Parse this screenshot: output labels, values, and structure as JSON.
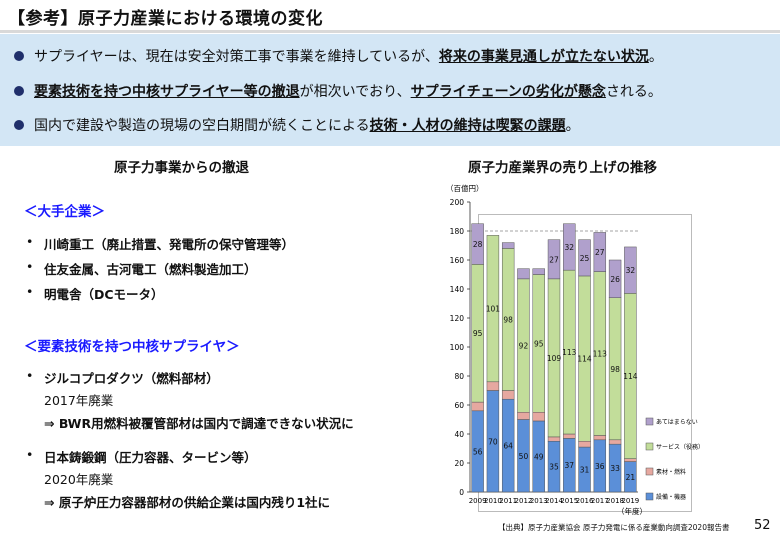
{
  "title": "【参考】原子力産業における環境の変化",
  "banner": {
    "item1": {
      "pre": "サプライヤーは、現在は安全対策工事で事業を維持しているが、",
      "hl": "将来の事業見通しが立たない状況",
      "post": "。"
    },
    "item2": {
      "hl1": "要素技術を持つ中核サプライヤー等の撤退",
      "mid": "が相次いでおり、",
      "hl2": "サプライチェーンの劣化が懸念",
      "post": "される。"
    },
    "item3": {
      "pre": "国内で建設や製造の現場の空白期間が続くことによる",
      "hl": "技術・人材の維持は喫緊の課題",
      "post": "。"
    }
  },
  "left": {
    "heading": "原子力事業からの撤退",
    "cat1": "＜大手企業＞",
    "cat1_items": [
      "川崎重工（廃止措置、発電所の保守管理等）",
      "住友金属、古河電工（燃料製造加工）",
      "明電舎（DCモータ）"
    ],
    "cat2": "＜要素技術を持つ中核サプライヤ＞",
    "company1": {
      "name": "ジルコプロダクツ（燃料部材）",
      "year": "2017年廃業",
      "note": "⇒  BWR用燃料被覆管部材は国内で調達できない状況に"
    },
    "company2": {
      "name": "日本鋳鍛鋼（圧力容器、タービン等）",
      "year": "2020年廃業",
      "note": "⇒  原子炉圧力容器部材の供給企業は国内残り1社に"
    }
  },
  "right": {
    "heading": "原子力産業界の売り上げの推移"
  },
  "chart_data": {
    "type": "bar",
    "stacked": true,
    "unit_label": "（百億円）",
    "xlabel": "（年度）",
    "ylim": [
      0,
      200
    ],
    "yticks": [
      0,
      20,
      40,
      60,
      80,
      100,
      120,
      140,
      160,
      180,
      200
    ],
    "reference_line": 180,
    "categories": [
      "2009",
      "2010",
      "2011",
      "2012",
      "2013",
      "2014",
      "2015",
      "2016",
      "2017",
      "2018",
      "2019"
    ],
    "series": [
      {
        "name": "設備・機器",
        "color": "#5b8fd8",
        "values": [
          56,
          70,
          64,
          50,
          49,
          35,
          37,
          31,
          36,
          33,
          21
        ]
      },
      {
        "name": "素材・燃料",
        "color": "#e6a8a0",
        "values": [
          6,
          6,
          6,
          5,
          6,
          3,
          3,
          4,
          3,
          3,
          2
        ]
      },
      {
        "name": "サービス（役務）",
        "color": "#c2dd9a",
        "values": [
          95,
          101,
          98,
          92,
          95,
          109,
          113,
          114,
          113,
          98,
          114
        ]
      },
      {
        "name": "あてはまらない",
        "color": "#b0a0cc",
        "values": [
          28,
          0,
          4,
          7,
          4,
          27,
          32,
          25,
          27,
          26,
          32
        ]
      }
    ],
    "labels_shown": [
      [
        56,
        70,
        64,
        50,
        49,
        35,
        37,
        31,
        36,
        33,
        21
      ],
      [
        null,
        null,
        null,
        null,
        null,
        null,
        null,
        null,
        null,
        null,
        null
      ],
      [
        95,
        101,
        98,
        92,
        95,
        109,
        113,
        114,
        113,
        98,
        114
      ],
      [
        28,
        null,
        null,
        null,
        null,
        27,
        32,
        25,
        27,
        26,
        32
      ]
    ],
    "legend_position": "right",
    "legend_order": [
      "あてはまらない",
      "サービス（役務）",
      "素材・燃料",
      "設備・機器"
    ]
  },
  "footer": {
    "source": "【出典】原子力産業協会 原子力発電に係る産業動向調査2020報告書",
    "page": "52"
  }
}
